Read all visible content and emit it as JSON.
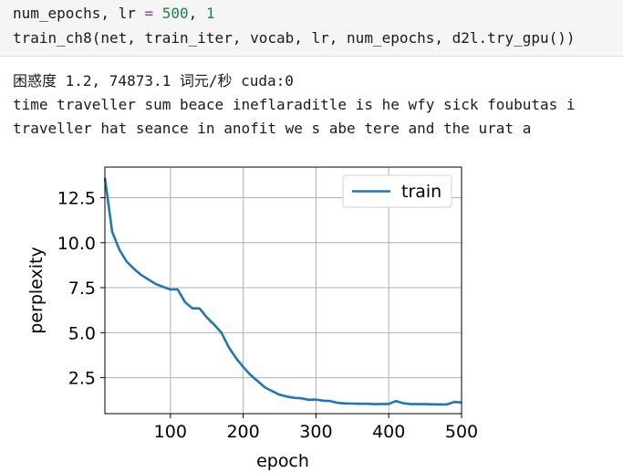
{
  "code": {
    "line1": {
      "var": "num_epochs",
      "sep1": ", ",
      "var2": "lr",
      "eq": " = ",
      "n1": "500",
      "sep2": ", ",
      "n2": "1"
    },
    "line2": "train_ch8(net, train_iter, vocab, lr, num_epochs, d2l.try_gpu())"
  },
  "output": {
    "line1": "困惑度 1.2, 74873.1 词元/秒 cuda:0",
    "line2": "time traveller sum beace ineflaraditle is he wfy sick foubutas i",
    "line3": "traveller hat seance in anofit we s abe tere and the urat a"
  },
  "chart_data": {
    "type": "line",
    "xlabel": "epoch",
    "ylabel": "perplexity",
    "xlim": [
      10,
      500
    ],
    "ylim": [
      0.5,
      14.2
    ],
    "xticks": [
      100,
      200,
      300,
      400,
      500
    ],
    "yticks": [
      2.5,
      5.0,
      7.5,
      10.0,
      12.5
    ],
    "ytick_labels": [
      "2.5",
      "5.0",
      "7.5",
      "10.0",
      "12.5"
    ],
    "grid": true,
    "legend": "top-right",
    "series": [
      {
        "name": "train",
        "color": "#1f77b4",
        "x": [
          10,
          20,
          30,
          40,
          50,
          60,
          70,
          80,
          90,
          100,
          110,
          120,
          130,
          140,
          150,
          160,
          170,
          180,
          190,
          200,
          210,
          220,
          230,
          240,
          250,
          260,
          270,
          280,
          290,
          300,
          310,
          320,
          330,
          340,
          350,
          360,
          370,
          380,
          390,
          400,
          410,
          420,
          430,
          440,
          450,
          460,
          470,
          480,
          490,
          500
        ],
        "y": [
          13.6,
          10.6,
          9.6,
          8.95,
          8.55,
          8.2,
          7.95,
          7.7,
          7.55,
          7.4,
          7.4,
          6.7,
          6.35,
          6.35,
          5.85,
          5.45,
          5.0,
          4.2,
          3.6,
          3.1,
          2.65,
          2.3,
          1.95,
          1.75,
          1.55,
          1.45,
          1.38,
          1.35,
          1.27,
          1.28,
          1.22,
          1.2,
          1.1,
          1.07,
          1.06,
          1.05,
          1.05,
          1.03,
          1.04,
          1.04,
          1.2,
          1.08,
          1.03,
          1.03,
          1.03,
          1.02,
          1.01,
          1.01,
          1.15,
          1.12
        ]
      }
    ]
  }
}
